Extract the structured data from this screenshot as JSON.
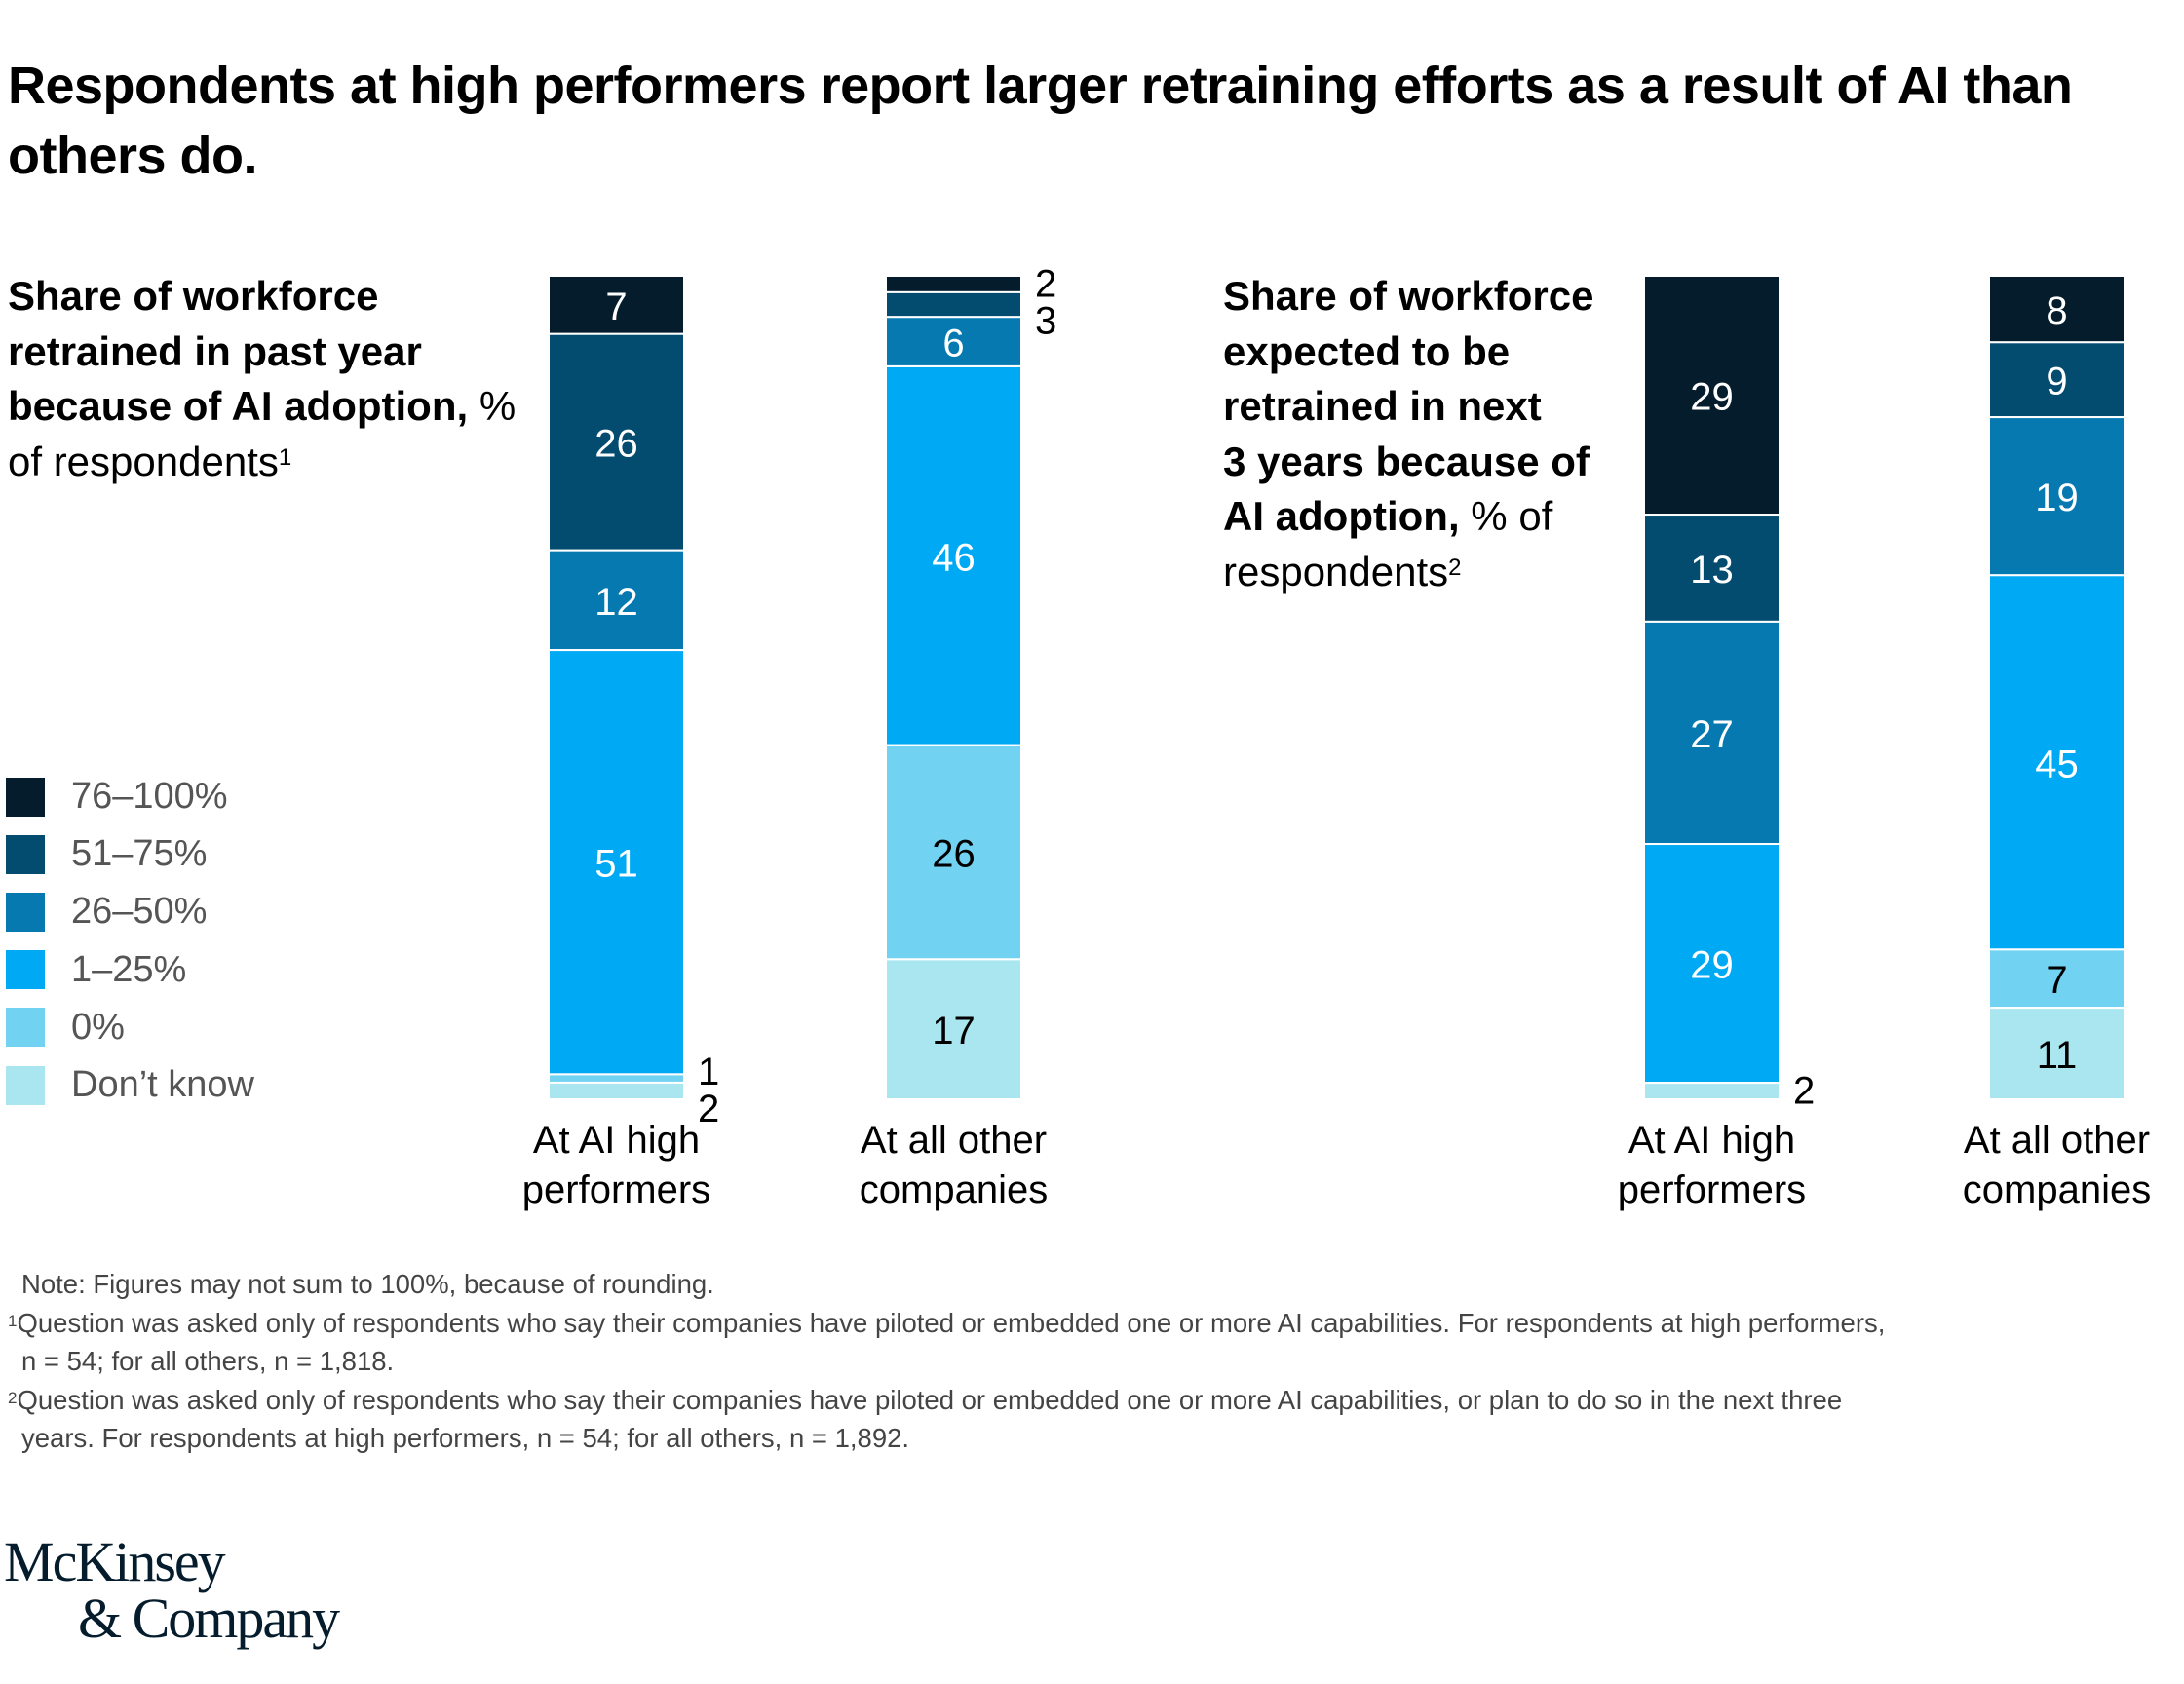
{
  "headline": "Respondents at high performers report larger retraining efforts as a result of AI than others do.",
  "panels": [
    {
      "title_bold": "Share of workforce retrained in past year because of AI adoption,",
      "title_normal": " % of respondents",
      "title_sup": "1"
    },
    {
      "title_bold_lines": [
        "Share of workforce",
        "expected to be",
        "retrained in next",
        "3 years because of",
        "AI adoption,"
      ],
      "title_normal": " % of",
      "title_normal_2": "respondents",
      "title_sup": "2"
    }
  ],
  "legend": [
    {
      "label": "76–100%",
      "color": "#051C2C"
    },
    {
      "label": "51–75%",
      "color": "#034B6F"
    },
    {
      "label": "26–50%",
      "color": "#0679B1"
    },
    {
      "label": "1–25%",
      "color": "#00A9F4"
    },
    {
      "label": "0%",
      "color": "#71D2F1"
    },
    {
      "label": "Don’t know",
      "color": "#AAE6F0"
    }
  ],
  "chart_data": [
    {
      "type": "bar",
      "stacked": true,
      "title": "Share of workforce retrained in past year because of AI adoption, % of respondents",
      "categories": [
        "At AI high performers",
        "At all other companies"
      ],
      "category_lines": [
        [
          "At AI high",
          "performers"
        ],
        [
          "At all other",
          "companies"
        ]
      ],
      "series": [
        {
          "name": "76–100%",
          "values": [
            7,
            2
          ]
        },
        {
          "name": "51–75%",
          "values": [
            26,
            3
          ]
        },
        {
          "name": "26–50%",
          "values": [
            12,
            6
          ]
        },
        {
          "name": "1–25%",
          "values": [
            51,
            46
          ]
        },
        {
          "name": "0%",
          "values": [
            1,
            26
          ]
        },
        {
          "name": "Don’t know",
          "values": [
            2,
            17
          ]
        }
      ],
      "ylabel": "% of respondents",
      "legend_position": "left"
    },
    {
      "type": "bar",
      "stacked": true,
      "title": "Share of workforce expected to be retrained in next 3 years because of AI adoption, % of respondents",
      "categories": [
        "At AI high performers",
        "At all other companies"
      ],
      "category_lines": [
        [
          "At AI high",
          "performers"
        ],
        [
          "At all other",
          "companies"
        ]
      ],
      "series": [
        {
          "name": "76–100%",
          "values": [
            29,
            8
          ]
        },
        {
          "name": "51–75%",
          "values": [
            13,
            9
          ]
        },
        {
          "name": "26–50%",
          "values": [
            27,
            19
          ]
        },
        {
          "name": "1–25%",
          "values": [
            29,
            45
          ]
        },
        {
          "name": "0%",
          "values": [
            0,
            7
          ]
        },
        {
          "name": "Don’t know",
          "values": [
            2,
            11
          ]
        }
      ],
      "ylabel": "% of respondents",
      "legend_position": "left"
    }
  ],
  "notes": {
    "note": "Note: Figures may not sum to 100%, because of rounding.",
    "fn1_sup": "1",
    "fn1_line1": "Question was asked only of respondents who say their companies have piloted or embedded one or more AI capabilities. For respondents at high performers,",
    "fn1_line2": "n = 54; for all others, n = 1,818.",
    "fn2_sup": "2",
    "fn2_line1": "Question was asked only of respondents who say their companies have piloted or embedded one or more AI capabilities, or plan to do so in the next three",
    "fn2_line2": "years. For respondents at high performers, n = 54; for all others, n = 1,892."
  },
  "logo": {
    "line1": "McKinsey",
    "line2": "& Company"
  }
}
